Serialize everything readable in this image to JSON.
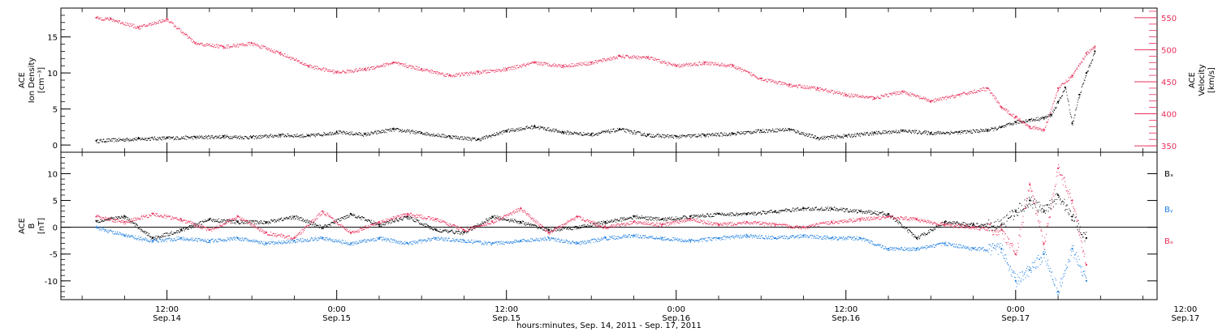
{
  "colors": {
    "black": "#000000",
    "red": "#e8305a",
    "blue": "#1f7fe0"
  },
  "chart_data": [
    {
      "type": "scatter",
      "panel": "top",
      "ylabel_lines": [
        "ACE",
        "Ion Density",
        "[cm⁻³]"
      ],
      "y2label_lines": [
        "ACE",
        "Velocity",
        "[km/s]"
      ],
      "ylim": [
        -1,
        19
      ],
      "y2lim": [
        340,
        565
      ],
      "yticks": [
        0,
        5,
        10,
        15
      ],
      "y2ticks": [
        350,
        400,
        450,
        500,
        550
      ],
      "series": [
        {
          "axis": "left",
          "color": "black",
          "x": [
            -17,
            -14,
            -12,
            -10,
            -8,
            -6,
            -4,
            -2,
            0,
            2,
            4,
            6,
            8,
            10,
            12,
            14,
            16,
            18,
            20,
            22,
            24,
            26,
            28,
            30,
            32,
            34,
            36,
            38,
            40,
            42,
            44,
            46,
            47,
            48,
            49,
            50,
            50.5,
            51,
            51.5,
            52,
            52.5,
            53,
            53.6
          ],
          "y": [
            0.6,
            0.9,
            1.0,
            1.1,
            1.2,
            1.1,
            1.4,
            1.3,
            1.8,
            1.5,
            2.2,
            1.7,
            1.2,
            0.8,
            2.0,
            2.6,
            1.8,
            1.5,
            2.2,
            1.4,
            1.2,
            1.4,
            1.6,
            2.0,
            2.2,
            1.0,
            1.3,
            1.7,
            2.0,
            1.7,
            1.8,
            2.1,
            2.5,
            3.2,
            3.5,
            3.8,
            4.2,
            6,
            8,
            3,
            7,
            10,
            13
          ]
        },
        {
          "axis": "right",
          "color": "red",
          "x": [
            -17,
            -16,
            -14,
            -12,
            -10,
            -8,
            -6,
            -4,
            -2,
            0,
            2,
            4,
            6,
            8,
            10,
            12,
            14,
            16,
            18,
            20,
            22,
            24,
            26,
            28,
            30,
            32,
            34,
            36,
            38,
            40,
            42,
            44,
            46,
            47,
            48,
            49,
            50,
            51,
            52,
            53,
            53.6
          ],
          "y": [
            550,
            548,
            535,
            548,
            510,
            505,
            510,
            495,
            475,
            465,
            470,
            480,
            470,
            460,
            465,
            470,
            480,
            475,
            480,
            490,
            488,
            475,
            480,
            475,
            455,
            445,
            440,
            430,
            425,
            435,
            420,
            430,
            440,
            410,
            395,
            380,
            375,
            440,
            460,
            495,
            505
          ]
        }
      ]
    },
    {
      "type": "scatter",
      "panel": "bottom",
      "ylabel_lines": [
        "ACE",
        "B",
        "[nT]"
      ],
      "ylim": [
        -13.5,
        14
      ],
      "yticks": [
        -10,
        -5,
        0,
        5,
        10
      ],
      "legend": [
        "Bₓ",
        "Bᵧ",
        "Bₔ"
      ],
      "series": [
        {
          "name": "Bₓ",
          "color": "black",
          "x": [
            -17,
            -15,
            -13,
            -11,
            -9,
            -7,
            -5,
            -3,
            -1,
            1,
            3,
            5,
            7,
            9,
            11,
            13,
            15,
            17,
            19,
            21,
            23,
            25,
            27,
            29,
            31,
            33,
            35,
            37,
            39,
            41,
            43,
            45,
            47,
            48,
            49,
            50,
            51,
            52,
            53
          ],
          "y": [
            1.2,
            2.0,
            -2.0,
            -0.5,
            1.5,
            1.0,
            1.0,
            2.0,
            0.0,
            2.5,
            0.5,
            2.0,
            -0.5,
            -1.0,
            2.0,
            1.0,
            -0.5,
            0.0,
            1.0,
            2.0,
            1.5,
            2.0,
            2.5,
            2.5,
            3.0,
            3.5,
            3.5,
            3.0,
            2.5,
            -2.0,
            1.0,
            0.5,
            0.5,
            3.0,
            5.0,
            3.0,
            6.0,
            2.0,
            -2.0
          ]
        },
        {
          "name": "Bᵧ",
          "color": "blue",
          "x": [
            -17,
            -15,
            -13,
            -11,
            -9,
            -7,
            -5,
            -3,
            -1,
            1,
            3,
            5,
            7,
            9,
            11,
            13,
            15,
            17,
            19,
            21,
            23,
            25,
            27,
            29,
            31,
            33,
            35,
            37,
            39,
            41,
            43,
            45,
            47,
            48,
            49,
            50,
            51,
            52,
            53
          ],
          "y": [
            0.0,
            -1.5,
            -2.5,
            -2.0,
            -2.5,
            -2.0,
            -3.0,
            -2.5,
            -2.0,
            -3.0,
            -2.0,
            -3.0,
            -2.0,
            -2.5,
            -3.0,
            -2.5,
            -2.0,
            -3.0,
            -2.0,
            -1.5,
            -2.0,
            -2.5,
            -2.0,
            -1.5,
            -2.0,
            -1.5,
            -2.0,
            -2.0,
            -4.0,
            -4.0,
            -3.0,
            -4.0,
            -4.0,
            -10.0,
            -8.0,
            -5.0,
            -12.0,
            -4.0,
            -10.0
          ]
        },
        {
          "name": "Bₔ",
          "color": "red",
          "x": [
            -17,
            -15,
            -13,
            -11,
            -9,
            -7,
            -5,
            -3,
            -1,
            1,
            3,
            5,
            7,
            9,
            11,
            13,
            15,
            17,
            19,
            21,
            23,
            25,
            27,
            29,
            31,
            33,
            35,
            37,
            39,
            41,
            43,
            45,
            47,
            48,
            49,
            50,
            51,
            52,
            53
          ],
          "y": [
            2.0,
            1.0,
            2.5,
            1.5,
            -0.5,
            2.0,
            -1.0,
            -2.0,
            3.0,
            -1.0,
            1.0,
            2.5,
            1.5,
            -0.5,
            1.0,
            3.5,
            -1.0,
            2.0,
            0.0,
            1.0,
            0.5,
            1.5,
            0.5,
            1.0,
            0.5,
            0.0,
            1.0,
            1.5,
            2.0,
            1.5,
            0.5,
            0.0,
            -0.5,
            -5.0,
            8.0,
            -3.0,
            11.0,
            5.0,
            -7.0
          ]
        }
      ]
    }
  ],
  "x_axis": {
    "ticks": [
      {
        "h": -12,
        "time": "12:00",
        "day": "Sep.14"
      },
      {
        "h": 0,
        "time": "0:00",
        "day": "Sep.15"
      },
      {
        "h": 12,
        "time": "12:00",
        "day": "Sep.15"
      },
      {
        "h": 24,
        "time": "0:00",
        "day": "Sep.16"
      },
      {
        "h": 36,
        "time": "12:00",
        "day": "Sep.16"
      },
      {
        "h": 48,
        "time": "0:00",
        "day": "Sep.17"
      },
      {
        "h": 60,
        "time": "12:00",
        "day": "Sep.17"
      }
    ],
    "xlim": [
      -19.5,
      58
    ],
    "label": "hours:minutes, Sep. 14, 2011 - Sep. 17, 2011"
  }
}
